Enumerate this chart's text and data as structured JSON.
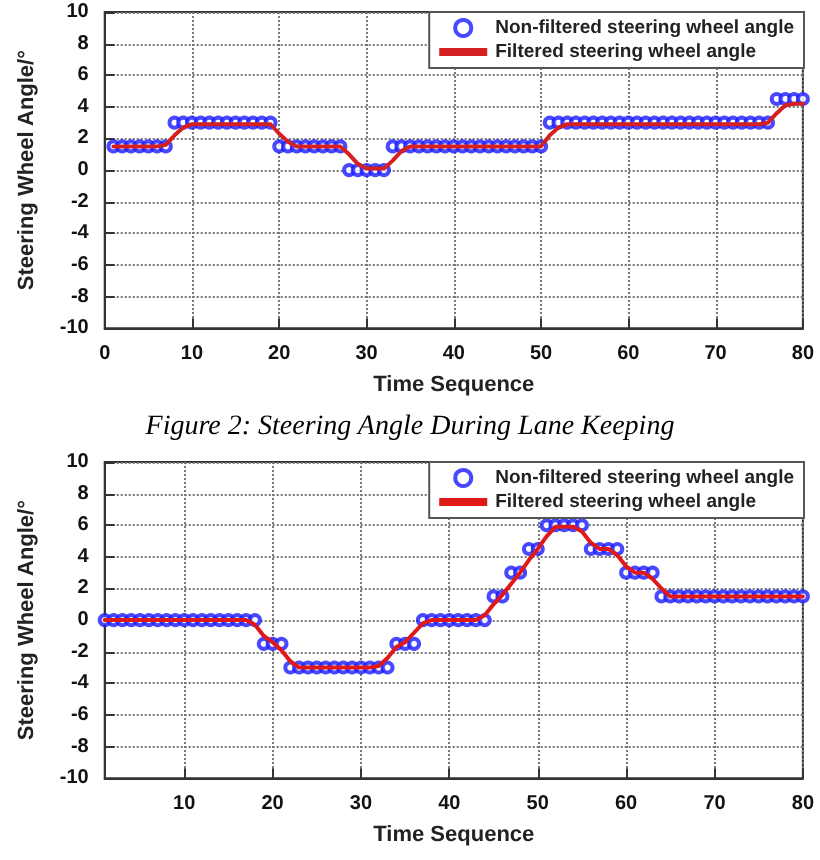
{
  "chart_data": [
    {
      "type": "line",
      "xlabel": "Time Sequence",
      "ylabel": "Steering Wheel Angle/°",
      "xlim": [
        0,
        80
      ],
      "xticks": [
        0,
        10,
        20,
        30,
        40,
        50,
        60,
        70,
        80
      ],
      "ylim": [
        -10,
        10
      ],
      "yticks": [
        -10,
        -8,
        -6,
        -4,
        -2,
        0,
        2,
        4,
        6,
        8,
        10
      ],
      "grid": true,
      "legend": "top right",
      "annotations": [
        "Figure 2: Steering Angle During Lane Keeping"
      ],
      "x": [
        1,
        2,
        3,
        4,
        5,
        6,
        7,
        8,
        9,
        10,
        11,
        12,
        13,
        14,
        15,
        16,
        17,
        18,
        19,
        20,
        21,
        22,
        23,
        24,
        25,
        26,
        27,
        28,
        29,
        30,
        31,
        32,
        33,
        34,
        35,
        36,
        37,
        38,
        39,
        40,
        41,
        42,
        43,
        44,
        45,
        46,
        47,
        48,
        49,
        50,
        51,
        52,
        53,
        54,
        55,
        56,
        57,
        58,
        59,
        60,
        61,
        62,
        63,
        64,
        65,
        66,
        67,
        68,
        69,
        70,
        71,
        72,
        73,
        74,
        75,
        76,
        77,
        78,
        79,
        80
      ],
      "series": [
        {
          "name": "Non-filtered steering wheel angle",
          "type": "scatter",
          "marker": "circle",
          "color": "#1a1aff",
          "values": [
            1.5,
            1.5,
            1.5,
            1.5,
            1.5,
            1.5,
            1.5,
            3,
            3,
            3,
            3,
            3,
            3,
            3,
            3,
            3,
            3,
            3,
            3,
            1.5,
            1.5,
            1.5,
            1.5,
            1.5,
            1.5,
            1.5,
            1.5,
            0,
            0,
            0,
            0,
            0,
            1.5,
            1.5,
            1.5,
            1.5,
            1.5,
            1.5,
            1.5,
            1.5,
            1.5,
            1.5,
            1.5,
            1.5,
            1.5,
            1.5,
            1.5,
            1.5,
            1.5,
            1.5,
            3,
            3,
            3,
            3,
            3,
            3,
            3,
            3,
            3,
            3,
            3,
            3,
            3,
            3,
            3,
            3,
            3,
            3,
            3,
            3,
            3,
            3,
            3,
            3,
            3,
            3,
            4.5,
            4.5,
            4.5,
            4.5
          ]
        },
        {
          "name": "Filtered steering wheel angle",
          "type": "line",
          "marker": "none",
          "line_style": "solid",
          "color": "#d42020",
          "values": [
            1.5,
            1.5,
            1.5,
            1.5,
            1.5,
            1.5,
            1.6,
            2.2,
            2.7,
            2.9,
            2.9,
            2.9,
            2.9,
            2.9,
            2.9,
            2.9,
            2.9,
            2.9,
            2.9,
            2.3,
            1.8,
            1.5,
            1.5,
            1.5,
            1.5,
            1.5,
            1.5,
            1.0,
            0.4,
            0.1,
            0.1,
            0.1,
            0.6,
            1.2,
            1.5,
            1.5,
            1.5,
            1.5,
            1.5,
            1.5,
            1.5,
            1.5,
            1.5,
            1.5,
            1.5,
            1.5,
            1.5,
            1.5,
            1.5,
            1.5,
            2.2,
            2.7,
            2.9,
            2.9,
            2.9,
            2.9,
            2.9,
            2.9,
            2.9,
            2.9,
            2.9,
            2.9,
            2.9,
            2.9,
            2.9,
            2.9,
            2.9,
            2.9,
            2.9,
            2.9,
            2.9,
            2.9,
            2.9,
            2.9,
            2.9,
            3.0,
            3.6,
            4.1,
            4.2,
            4.2
          ]
        }
      ]
    },
    {
      "type": "line",
      "xlabel": "Time Sequence",
      "ylabel": "Steering Wheel Angle/°",
      "xlim": [
        1,
        80
      ],
      "xticks": [
        10,
        20,
        30,
        40,
        50,
        60,
        70,
        80
      ],
      "ylim": [
        -10,
        10
      ],
      "yticks": [
        -10,
        -8,
        -6,
        -4,
        -2,
        0,
        2,
        4,
        6,
        8,
        10
      ],
      "grid": true,
      "legend": "top right",
      "x": [
        1,
        2,
        3,
        4,
        5,
        6,
        7,
        8,
        9,
        10,
        11,
        12,
        13,
        14,
        15,
        16,
        17,
        18,
        19,
        20,
        21,
        22,
        23,
        24,
        25,
        26,
        27,
        28,
        29,
        30,
        31,
        32,
        33,
        34,
        35,
        36,
        37,
        38,
        39,
        40,
        41,
        42,
        43,
        44,
        45,
        46,
        47,
        48,
        49,
        50,
        51,
        52,
        53,
        54,
        55,
        56,
        57,
        58,
        59,
        60,
        61,
        62,
        63,
        64,
        65,
        66,
        67,
        68,
        69,
        70,
        71,
        72,
        73,
        74,
        75,
        76,
        77,
        78,
        79,
        80
      ],
      "series": [
        {
          "name": "Non-filtered steering wheel angle",
          "type": "scatter",
          "marker": "circle",
          "color": "#1a1aff",
          "values": [
            0,
            0,
            0,
            0,
            0,
            0,
            0,
            0,
            0,
            0,
            0,
            0,
            0,
            0,
            0,
            0,
            0,
            0,
            -1.5,
            -1.5,
            -1.5,
            -3,
            -3,
            -3,
            -3,
            -3,
            -3,
            -3,
            -3,
            -3,
            -3,
            -3,
            -3,
            -1.5,
            -1.5,
            -1.5,
            0,
            0,
            0,
            0,
            0,
            0,
            0,
            0,
            1.5,
            1.5,
            3,
            3,
            4.5,
            4.5,
            6,
            6,
            6,
            6,
            6,
            4.5,
            4.5,
            4.5,
            4.5,
            3,
            3,
            3,
            3,
            1.5,
            1.5,
            1.5,
            1.5,
            1.5,
            1.5,
            1.5,
            1.5,
            1.5,
            1.5,
            1.5,
            1.5,
            1.5,
            1.5,
            1.5,
            1.5,
            1.5
          ]
        },
        {
          "name": "Filtered steering wheel angle",
          "type": "line",
          "marker": "none",
          "line_style": "solid",
          "color": "#e01818",
          "values": [
            0,
            0,
            0,
            0,
            0,
            0,
            0,
            0,
            0,
            0,
            0,
            0,
            0,
            0,
            0,
            0,
            0,
            -0.3,
            -1.0,
            -1.4,
            -1.9,
            -2.6,
            -3,
            -3,
            -3,
            -3,
            -3,
            -3,
            -3,
            -3,
            -3,
            -2.9,
            -2.4,
            -1.7,
            -1.4,
            -0.8,
            -0.2,
            0,
            0,
            0,
            0,
            0,
            0,
            0.3,
            1.0,
            1.6,
            2.3,
            3.0,
            3.8,
            4.5,
            5.3,
            5.9,
            5.9,
            5.9,
            5.6,
            4.9,
            4.5,
            4.5,
            4.1,
            3.4,
            3.0,
            3.0,
            2.6,
            2.0,
            1.5,
            1.5,
            1.5,
            1.5,
            1.5,
            1.5,
            1.5,
            1.5,
            1.5,
            1.5,
            1.5,
            1.5,
            1.5,
            1.5,
            1.5,
            1.5
          ]
        }
      ]
    }
  ]
}
